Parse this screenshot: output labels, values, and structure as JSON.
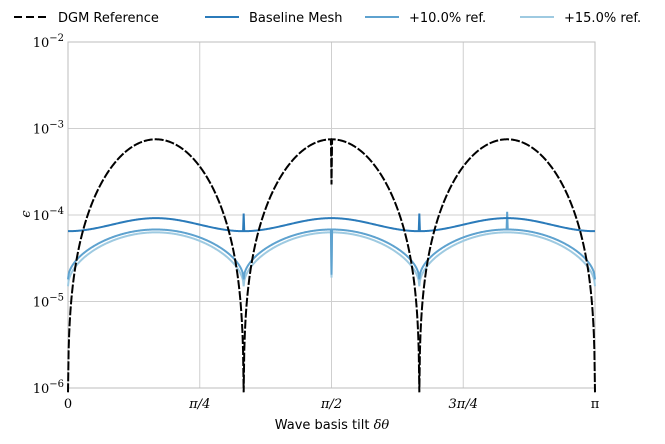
{
  "chart_data": {
    "type": "line",
    "title": "",
    "xlabel": "Wave basis tilt",
    "xlabel_symbol": "δθ",
    "ylabel": "ϵ",
    "yscale": "log",
    "xlim": [
      0,
      3.14159265
    ],
    "ylim": [
      1e-06,
      0.01
    ],
    "grid": true,
    "legend_position": "top",
    "xticks": [
      {
        "value": 0,
        "label": "0"
      },
      {
        "value": 0.78539816,
        "label": "π/4"
      },
      {
        "value": 1.57079633,
        "label": "π/2"
      },
      {
        "value": 2.35619449,
        "label": "3π/4"
      },
      {
        "value": 3.14159265,
        "label": "π"
      }
    ],
    "yticks": [
      {
        "value": 1e-06,
        "base": "10",
        "exp": "−6"
      },
      {
        "value": 1e-05,
        "base": "10",
        "exp": "−5"
      },
      {
        "value": 0.0001,
        "base": "10",
        "exp": "−4"
      },
      {
        "value": 0.001,
        "base": "10",
        "exp": "−3"
      },
      {
        "value": 0.01,
        "base": "10",
        "exp": "−2"
      }
    ],
    "series": [
      {
        "name": "DGM Reference",
        "color": "#000000",
        "dashed": true,
        "min": 3e-07,
        "max": 0.00075,
        "model": "abs_sin",
        "spike_down": [
          1.5708,
          0.0
        ],
        "spike_up": []
      },
      {
        "name": "Baseline Mesh",
        "color": "#2b7bba",
        "dashed": false,
        "min": 6.5e-05,
        "max": 9.2e-05,
        "model": "cos_osc",
        "spike_down": [],
        "spike_up": [
          1.0472,
          2.0944
        ]
      },
      {
        "name": "+10.0% ref.",
        "color": "#5ea2cf",
        "dashed": false,
        "min": 1.8e-05,
        "max": 6.8e-05,
        "model": "wide",
        "spike_down": [
          1.5708
        ],
        "spike_up": [
          2.618
        ]
      },
      {
        "name": "+15.0% ref.",
        "color": "#9ecae1",
        "dashed": false,
        "min": 1.5e-05,
        "max": 6.3e-05,
        "model": "wide",
        "spike_down": [
          1.5708
        ],
        "spike_up": []
      }
    ]
  }
}
